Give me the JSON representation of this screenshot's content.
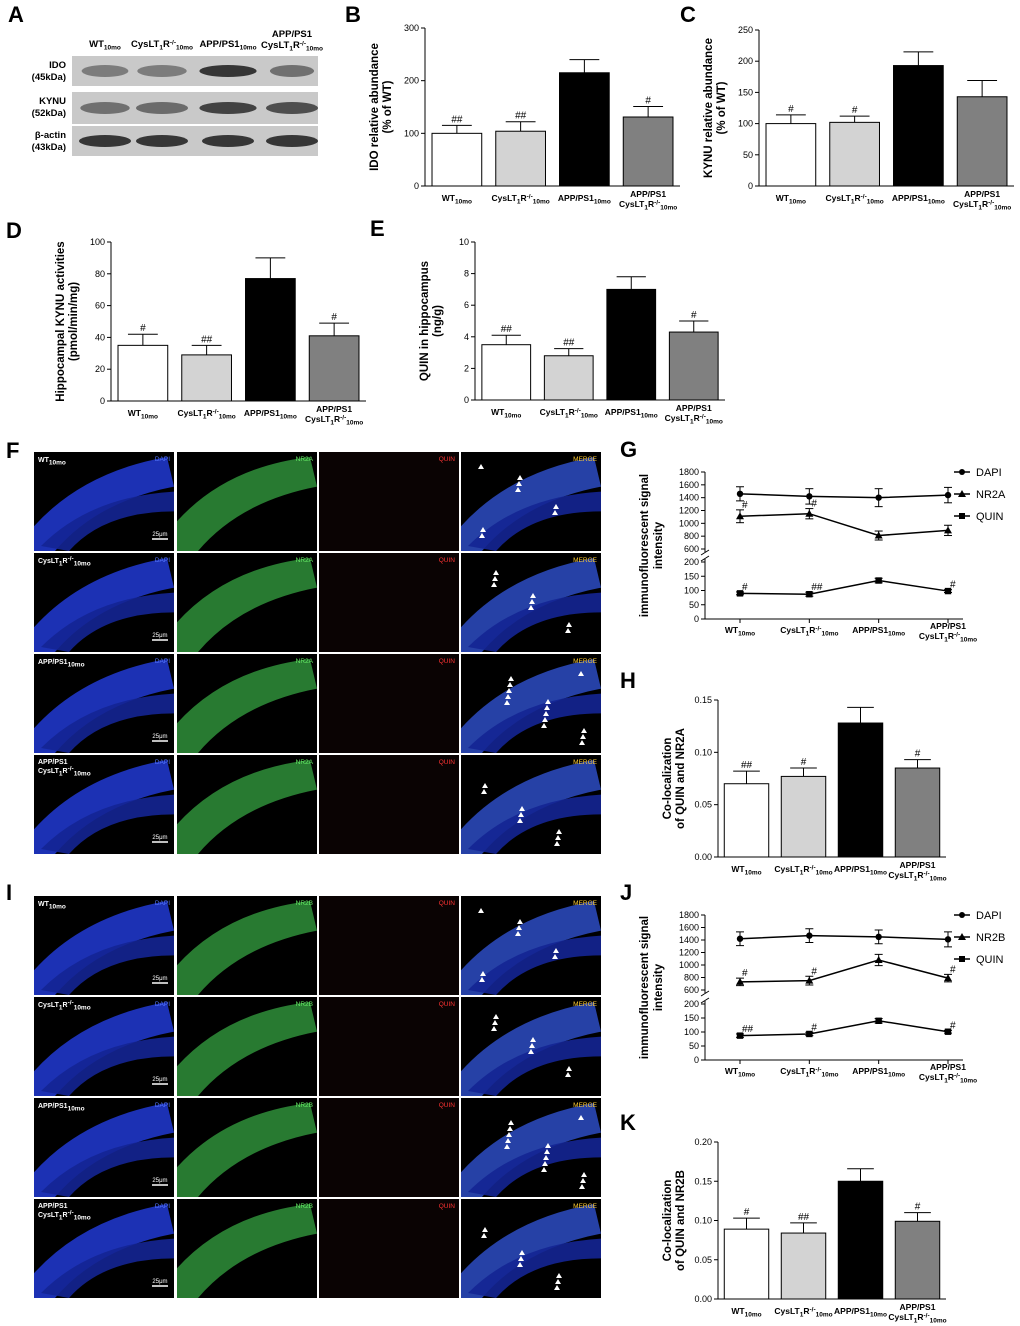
{
  "panel_letters": [
    "A",
    "B",
    "C",
    "D",
    "E",
    "F",
    "G",
    "H",
    "I",
    "J",
    "K"
  ],
  "groups": [
    "WT10mo",
    "CysLT1R-/-10mo",
    "APP/PS110mo",
    "APP/PS1 CysLT1R-/-10mo"
  ],
  "western_blot": {
    "columns": [
      "WT10mo",
      "CysLT1R-/-10mo",
      "APP/PS110mo",
      "APP/PS1 CysLT1R-/-10mo"
    ],
    "rows": [
      {
        "name": "IDO",
        "size": "(45kDa)"
      },
      {
        "name": "KYNU",
        "size": "(52kDa)"
      },
      {
        "name": "β-actin",
        "size": "(43kDa)"
      }
    ]
  },
  "microscopy": {
    "channels": [
      "DAPI",
      "NR2A",
      "QUIN",
      "MERGE"
    ],
    "channels_nr2b": [
      "DAPI",
      "NR2B",
      "QUIN",
      "MERGE"
    ],
    "scale_bar": "25μm",
    "rows": [
      "WT10mo",
      "CysLT1R-/-10mo",
      "APP/PS110mo",
      "APP/PS1 CysLT1R-/-10mo"
    ]
  },
  "chart_data": [
    {
      "panel": "B",
      "type": "bar",
      "ylabel": "IDO relative abundance (% of WT)",
      "ylim": [
        0,
        300
      ],
      "yticks": [
        0,
        100,
        200,
        300
      ],
      "categories": [
        "WT10mo",
        "CysLT1R-/-10mo",
        "APP/PS110mo",
        "APP/PS1 CysLT1R-/-10mo"
      ],
      "values": [
        100,
        104,
        215,
        131
      ],
      "errors": [
        15,
        18,
        25,
        20
      ],
      "significance": [
        "##",
        "##",
        "",
        "#"
      ],
      "colors": [
        "#ffffff",
        "#d3d3d3",
        "#000000",
        "#808080"
      ]
    },
    {
      "panel": "C",
      "type": "bar",
      "ylabel": "KYNU relative abundance (% of WT)",
      "ylim": [
        0,
        250
      ],
      "yticks": [
        0,
        50,
        100,
        150,
        200,
        250
      ],
      "categories": [
        "WT10mo",
        "CysLT1R-/-10mo",
        "APP/PS110mo",
        "APP/PS1 CysLT1R-/-10mo"
      ],
      "values": [
        100,
        102,
        193,
        143
      ],
      "errors": [
        14,
        10,
        22,
        26
      ],
      "significance": [
        "#",
        "#",
        "",
        ""
      ],
      "colors": [
        "#ffffff",
        "#d3d3d3",
        "#000000",
        "#808080"
      ]
    },
    {
      "panel": "D",
      "type": "bar",
      "ylabel": "Hippocampal KYNU activities (pmol/min/mg)",
      "ylim": [
        0,
        100
      ],
      "yticks": [
        0,
        20,
        40,
        60,
        80,
        100
      ],
      "categories": [
        "WT10mo",
        "CysLT1R-/-10mo",
        "APP/PS110mo",
        "APP/PS1 CysLT1R-/-10mo"
      ],
      "values": [
        35,
        29,
        77,
        41
      ],
      "errors": [
        7,
        6,
        13,
        8
      ],
      "significance": [
        "#",
        "##",
        "",
        "#"
      ],
      "colors": [
        "#ffffff",
        "#d3d3d3",
        "#000000",
        "#808080"
      ]
    },
    {
      "panel": "E",
      "type": "bar",
      "ylabel": "QUIN in hippocampus (ng/g)",
      "ylim": [
        0,
        10
      ],
      "yticks": [
        0,
        2,
        4,
        6,
        8,
        10
      ],
      "categories": [
        "WT10mo",
        "CysLT1R-/-10mo",
        "APP/PS110mo",
        "APP/PS1 CysLT1R-/-10mo"
      ],
      "values": [
        3.5,
        2.8,
        7.0,
        4.3
      ],
      "errors": [
        0.6,
        0.45,
        0.8,
        0.7
      ],
      "significance": [
        "##",
        "##",
        "",
        "#"
      ],
      "colors": [
        "#ffffff",
        "#d3d3d3",
        "#000000",
        "#808080"
      ]
    },
    {
      "panel": "G",
      "type": "line",
      "ylabel": "immunofluorescent signal intensity",
      "yticks_upper": [
        600,
        800,
        1000,
        1200,
        1400,
        1600,
        1800
      ],
      "yticks_lower": [
        0,
        50,
        100,
        150,
        200
      ],
      "categories": [
        "WT10mo",
        "CysLT1R-/-10mo",
        "APP/PS110mo",
        "APP/PS1 CysLT1R-/-10mo"
      ],
      "legend_position": "top-right",
      "series": [
        {
          "name": "DAPI",
          "marker": "circle",
          "values": [
            1460,
            1420,
            1400,
            1440
          ],
          "errors": [
            110,
            120,
            140,
            120
          ],
          "significance": [
            "",
            "",
            "",
            ""
          ]
        },
        {
          "name": "NR2A",
          "marker": "triangle",
          "values": [
            1110,
            1150,
            810,
            890
          ],
          "errors": [
            100,
            80,
            70,
            80
          ],
          "significance": [
            "#",
            "#",
            "",
            ""
          ]
        },
        {
          "name": "QUIN",
          "marker": "square",
          "values": [
            90,
            87,
            135,
            98
          ],
          "errors": [
            5,
            7,
            8,
            5
          ],
          "significance": [
            "#",
            "##",
            "",
            "#"
          ]
        }
      ]
    },
    {
      "panel": "H",
      "type": "bar",
      "ylabel": "Co-localization of QUIN and NR2A",
      "ylim": [
        0,
        0.15
      ],
      "yticks": [
        0.0,
        0.05,
        0.1,
        0.15
      ],
      "ytick_labels": [
        "0.00",
        "0.05",
        "0.10",
        "0.15"
      ],
      "categories": [
        "WT10mo",
        "CysLT1R-/-10mo",
        "APP/PS110mo",
        "APP/PS1 CysLT1R-/-10mo"
      ],
      "values": [
        0.07,
        0.077,
        0.128,
        0.085
      ],
      "errors": [
        0.012,
        0.008,
        0.015,
        0.008
      ],
      "significance": [
        "##",
        "#",
        "",
        "#"
      ],
      "colors": [
        "#ffffff",
        "#d3d3d3",
        "#000000",
        "#808080"
      ]
    },
    {
      "panel": "J",
      "type": "line",
      "ylabel": "immunofluorescent signal intensity",
      "yticks_upper": [
        600,
        800,
        1000,
        1200,
        1400,
        1600,
        1800
      ],
      "yticks_lower": [
        0,
        50,
        100,
        150,
        200
      ],
      "categories": [
        "WT10mo",
        "CysLT1R-/-10mo",
        "APP/PS110mo",
        "APP/PS1 CysLT1R-/-10mo"
      ],
      "legend_position": "top-right",
      "series": [
        {
          "name": "DAPI",
          "marker": "circle",
          "values": [
            1420,
            1470,
            1450,
            1410
          ],
          "errors": [
            110,
            110,
            110,
            120
          ],
          "significance": [
            "",
            "",
            "",
            ""
          ]
        },
        {
          "name": "NR2B",
          "marker": "triangle",
          "values": [
            730,
            750,
            1080,
            790
          ],
          "errors": [
            60,
            70,
            90,
            60
          ],
          "significance": [
            "#",
            "#",
            "",
            "#"
          ]
        },
        {
          "name": "QUIN",
          "marker": "square",
          "values": [
            87,
            93,
            140,
            101
          ],
          "errors": [
            6,
            6,
            8,
            5
          ],
          "significance": [
            "##",
            "#",
            "",
            "#"
          ]
        }
      ]
    },
    {
      "panel": "K",
      "type": "bar",
      "ylabel": "Co-localization of QUIN and NR2B",
      "ylim": [
        0,
        0.2
      ],
      "yticks": [
        0.0,
        0.05,
        0.1,
        0.15,
        0.2
      ],
      "ytick_labels": [
        "0.00",
        "0.05",
        "0.10",
        "0.15",
        "0.20"
      ],
      "categories": [
        "WT10mo",
        "CysLT1R-/-10mo",
        "APP/PS110mo",
        "APP/PS1 CysLT1R-/-10mo"
      ],
      "values": [
        0.089,
        0.084,
        0.15,
        0.099
      ],
      "errors": [
        0.014,
        0.013,
        0.016,
        0.011
      ],
      "significance": [
        "#",
        "##",
        "",
        "#"
      ],
      "colors": [
        "#ffffff",
        "#d3d3d3",
        "#000000",
        "#808080"
      ]
    }
  ]
}
